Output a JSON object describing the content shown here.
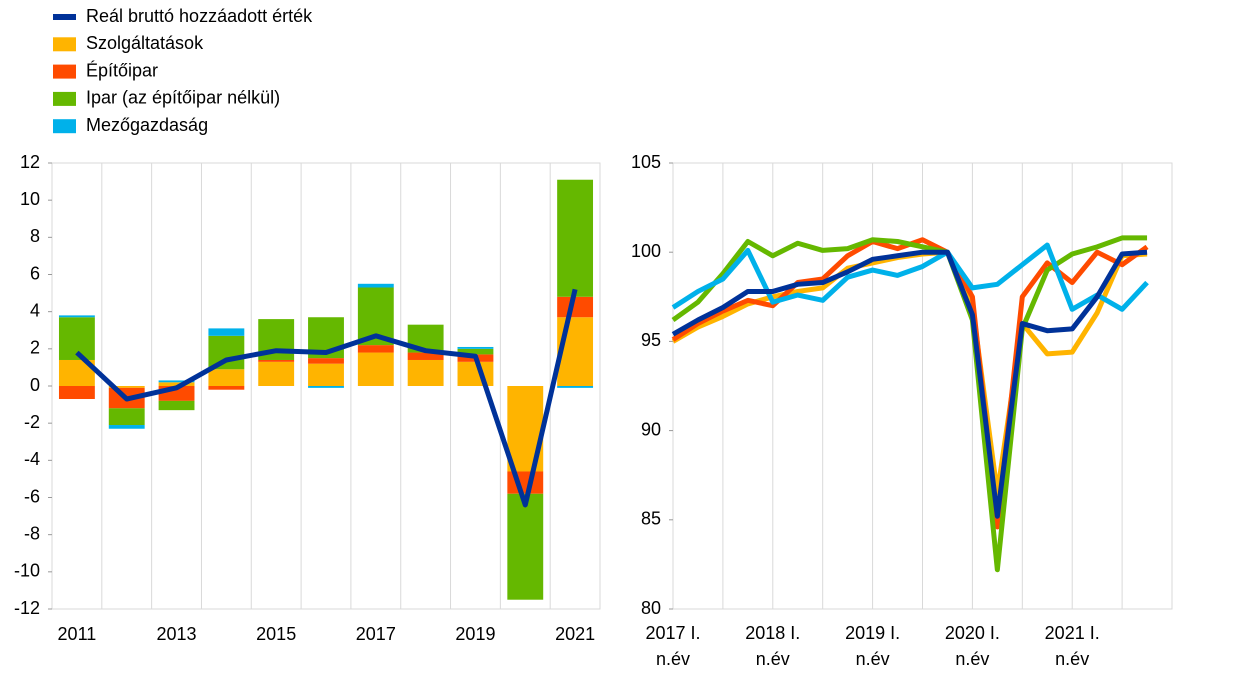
{
  "chart_data": [
    {
      "type": "bar",
      "stacked": true,
      "legend": "top-left",
      "grid": "x",
      "categories": [
        "2011",
        null,
        "2013",
        null,
        "2015",
        null,
        "2017",
        null,
        "2019",
        null,
        "2021"
      ],
      "ylim": [
        -12,
        12
      ],
      "yticks": [
        -12,
        -10,
        -8,
        -6,
        -4,
        -2,
        0,
        2,
        4,
        6,
        8,
        10,
        12
      ],
      "series": [
        {
          "name": "Reál bruttó hozzáadott érték",
          "type": "line",
          "color": "#003299",
          "values": [
            1.8,
            -0.7,
            -0.1,
            1.4,
            1.9,
            1.8,
            2.7,
            1.9,
            1.6,
            -6.4,
            5.2
          ]
        },
        {
          "name": "Szolgáltatások",
          "color": "#ffb400",
          "values": [
            1.4,
            -0.1,
            0.2,
            0.9,
            1.3,
            1.2,
            1.8,
            1.4,
            1.3,
            -4.6,
            3.7
          ]
        },
        {
          "name": "Építőipar",
          "color": "#ff4b00",
          "values": [
            -0.7,
            -1.1,
            -0.8,
            -0.2,
            0.1,
            0.3,
            0.4,
            0.4,
            0.4,
            -1.2,
            1.1
          ]
        },
        {
          "name": "Ipar (az építőipar nélkül)",
          "color": "#65b800",
          "values": [
            2.3,
            -0.9,
            -0.5,
            1.8,
            2.2,
            2.2,
            3.1,
            1.5,
            0.3,
            -5.7,
            6.3
          ]
        },
        {
          "name": "Mezőgazdaság",
          "color": "#00b1ea",
          "values": [
            0.1,
            -0.2,
            0.1,
            0.4,
            0.0,
            -0.1,
            0.2,
            0.0,
            0.1,
            0.0,
            -0.1
          ]
        }
      ]
    },
    {
      "type": "line",
      "grid": "x",
      "categories": [
        [
          "2017 I.",
          "n.év"
        ],
        null,
        null,
        null,
        [
          "2018 I.",
          "n.év"
        ],
        null,
        null,
        null,
        [
          "2019 I.",
          "n.év"
        ],
        null,
        null,
        null,
        [
          "2020 I.",
          "n.év"
        ],
        null,
        null,
        null,
        [
          "2021 I.",
          "n.év"
        ],
        null,
        null,
        null
      ],
      "ylim": [
        80,
        105
      ],
      "yticks": [
        80,
        85,
        90,
        95,
        100,
        105
      ],
      "series": [
        {
          "color": "#ffb400",
          "values": [
            95.0,
            95.8,
            96.4,
            97.1,
            97.5,
            97.8,
            98.0,
            99.1,
            99.4,
            99.7,
            99.9,
            100.0,
            97.0,
            86.5,
            96.0,
            94.3,
            94.4,
            96.6,
            99.8,
            99.9
          ]
        },
        {
          "color": "#ff4b00",
          "values": [
            95.1,
            96.0,
            96.7,
            97.3,
            97.0,
            98.3,
            98.5,
            99.8,
            100.6,
            100.2,
            100.7,
            100.0,
            97.5,
            84.6,
            97.5,
            99.4,
            98.3,
            100.0,
            99.3,
            100.3
          ]
        },
        {
          "color": "#65b800",
          "values": [
            96.2,
            97.2,
            98.8,
            100.6,
            99.8,
            100.5,
            100.1,
            100.2,
            100.7,
            100.6,
            100.3,
            100.0,
            96.2,
            82.2,
            95.7,
            99.0,
            99.9,
            100.3,
            100.8,
            100.8
          ]
        },
        {
          "color": "#00b1ea",
          "values": [
            96.9,
            97.8,
            98.5,
            100.1,
            97.2,
            97.6,
            97.3,
            98.6,
            99.0,
            98.7,
            99.2,
            100.0,
            98.0,
            98.2,
            99.3,
            100.4,
            96.8,
            97.6,
            96.8,
            98.3
          ]
        },
        {
          "color": "#003299",
          "width": 5,
          "values": [
            95.4,
            96.2,
            96.9,
            97.8,
            97.8,
            98.2,
            98.3,
            98.9,
            99.6,
            99.8,
            100.0,
            100.0,
            96.5,
            85.2,
            96.0,
            95.6,
            95.7,
            97.5,
            99.9,
            100.0
          ]
        }
      ]
    }
  ]
}
